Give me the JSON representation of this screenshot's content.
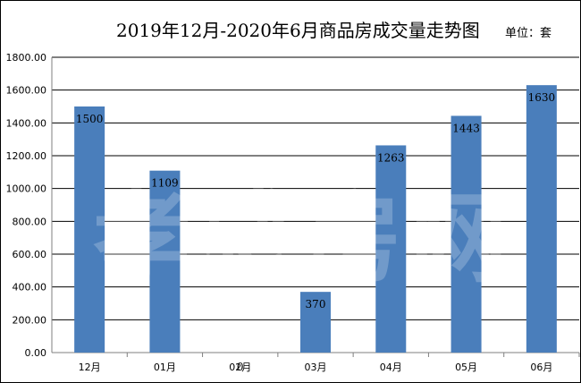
{
  "title": "2019年12月-2020年6月商品房成交量走势图",
  "unit_label": "单位：套",
  "watermark": "孝感房网",
  "colors": {
    "bar": "#4a7ebb",
    "grid": "#000000",
    "axis": "#7f7f7f"
  },
  "chart_data": {
    "type": "bar",
    "title": "2019年12月-2020年6月商品房成交量走势图",
    "categories": [
      "12月",
      "01月",
      "02月",
      "03月",
      "04月",
      "05月",
      "06月"
    ],
    "values": [
      1500,
      1109,
      0,
      370,
      1263,
      1443,
      1630
    ],
    "data_labels": [
      "1500",
      "1109",
      "0",
      "370",
      "1263",
      "1443",
      "1630"
    ],
    "ylim": [
      0,
      1800
    ],
    "yticks": [
      "0.00",
      "200.00",
      "400.00",
      "600.00",
      "800.00",
      "1000.00",
      "1200.00",
      "1400.00",
      "1600.00",
      "1800.00"
    ],
    "xlabel": "",
    "ylabel": "",
    "grid": true,
    "legend": "none"
  }
}
